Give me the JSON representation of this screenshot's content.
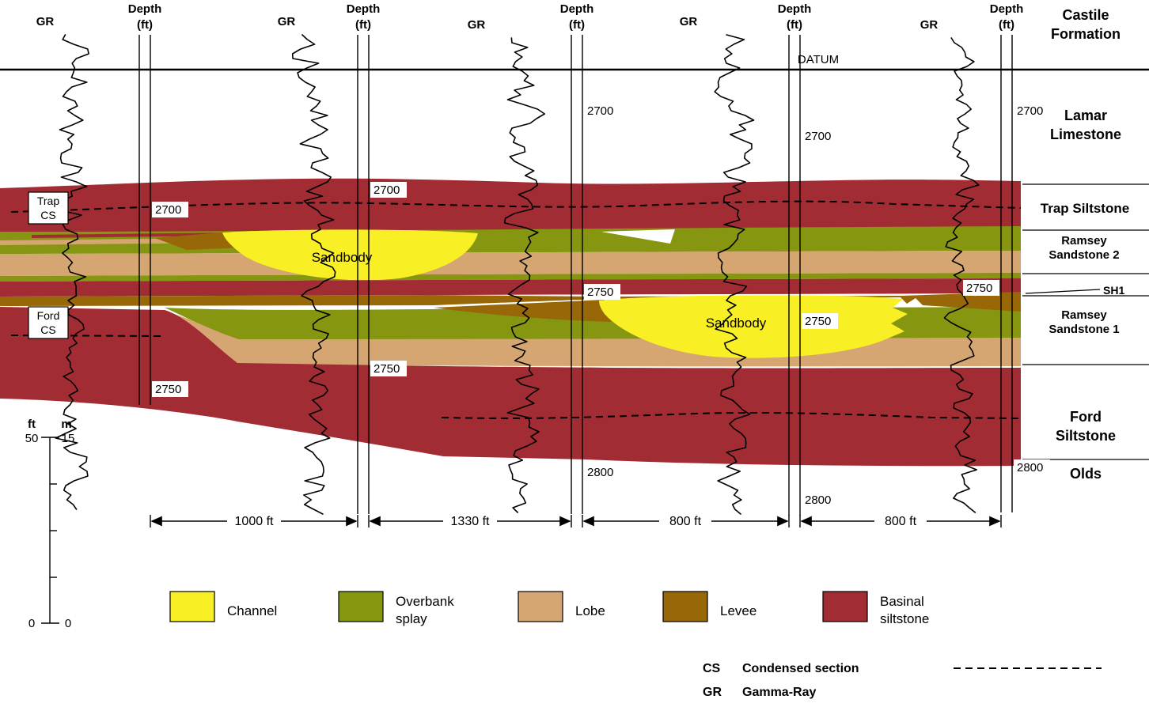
{
  "colors": {
    "channel": "#f8ef25",
    "overbank": "#879610",
    "lobe": "#d6a672",
    "levee": "#976708",
    "basinal": "#a22c33",
    "background": "#ffffff",
    "line": "#000000"
  },
  "section_labels": {
    "datum": "DATUM",
    "sandbody1": "Sandbody",
    "sandbody2": "Sandbody"
  },
  "wells": [
    {
      "gr": "GR",
      "depth_line1": "Depth",
      "depth_line2": "(ft)",
      "marks": [
        {
          "v": "2700"
        },
        {
          "v": "2750"
        }
      ]
    },
    {
      "gr": "GR",
      "depth_line1": "Depth",
      "depth_line2": "(ft)",
      "marks": [
        {
          "v": "2700"
        },
        {
          "v": "2750"
        }
      ]
    },
    {
      "gr": "GR",
      "depth_line1": "Depth",
      "depth_line2": "(ft)",
      "marks": [
        {
          "v": "2700"
        },
        {
          "v": "2750"
        },
        {
          "v": "2800"
        }
      ]
    },
    {
      "gr": "GR",
      "depth_line1": "Depth",
      "depth_line2": "(ft)",
      "marks": [
        {
          "v": "2700"
        },
        {
          "v": "2750"
        },
        {
          "v": "2800"
        }
      ]
    },
    {
      "gr": "GR",
      "depth_line1": "Depth",
      "depth_line2": "(ft)",
      "marks": [
        {
          "v": "2700"
        },
        {
          "v": "2750"
        },
        {
          "v": "2800"
        }
      ]
    }
  ],
  "cs_markers": {
    "trap": {
      "line1": "Trap",
      "line2": "CS"
    },
    "ford": {
      "line1": "Ford",
      "line2": "CS"
    }
  },
  "formations": {
    "castile": {
      "line1": "Castile",
      "line2": "Formation"
    },
    "lamar": {
      "line1": "Lamar",
      "line2": "Limestone"
    },
    "trap": {
      "line1": "Trap Siltstone"
    },
    "ramsey2": {
      "line1": "Ramsey",
      "line2": "Sandstone 2"
    },
    "sh1": {
      "line1": "SH1"
    },
    "ramsey1": {
      "line1": "Ramsey",
      "line2": "Sandstone 1"
    },
    "ford": {
      "line1": "Ford",
      "line2": "Siltstone"
    },
    "olds": {
      "line1": "Olds"
    }
  },
  "distances": [
    {
      "label": "1000 ft"
    },
    {
      "label": "1330 ft"
    },
    {
      "label": "800 ft"
    },
    {
      "label": "800 ft"
    }
  ],
  "scale_bar": {
    "unit_left": "ft",
    "unit_right": "m",
    "top_left": "50",
    "top_right": "15",
    "bottom_left": "0",
    "bottom_right": "0"
  },
  "legend": [
    {
      "line1": "Channel",
      "line2": ""
    },
    {
      "line1": "Overbank",
      "line2": "splay"
    },
    {
      "line1": "Lobe",
      "line2": ""
    },
    {
      "line1": "Levee",
      "line2": ""
    },
    {
      "line1": "Basinal",
      "line2": "siltstone"
    }
  ],
  "abbreviations": [
    {
      "abbr": "CS",
      "meaning": "Condensed section"
    },
    {
      "abbr": "GR",
      "meaning": "Gamma-Ray"
    }
  ]
}
